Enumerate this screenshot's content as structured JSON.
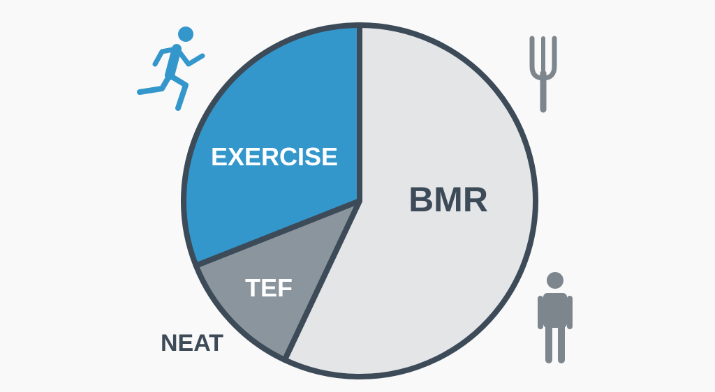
{
  "chart_data": {
    "type": "pie",
    "start": "top",
    "direction": "clockwise",
    "slices": [
      {
        "label": "BMR",
        "value": 57,
        "color": "#e4e5e7",
        "label_color": "#3d4b58"
      },
      {
        "label": "TEF",
        "value": 12,
        "color": "#8a959d",
        "label_color": "#ffffff"
      },
      {
        "label": "EXERCISE",
        "value": 31,
        "color": "#3497cc",
        "label_color": "#ffffff"
      }
    ],
    "annotations": [
      {
        "text": "NEAT",
        "color": "#3d4b58"
      }
    ],
    "outline_color": "#3d4b58",
    "icons": [
      {
        "name": "running-person-icon",
        "color": "#3497cc"
      },
      {
        "name": "fork-icon",
        "color": "#7d868d"
      },
      {
        "name": "standing-person-icon",
        "color": "#7d868d"
      }
    ]
  }
}
